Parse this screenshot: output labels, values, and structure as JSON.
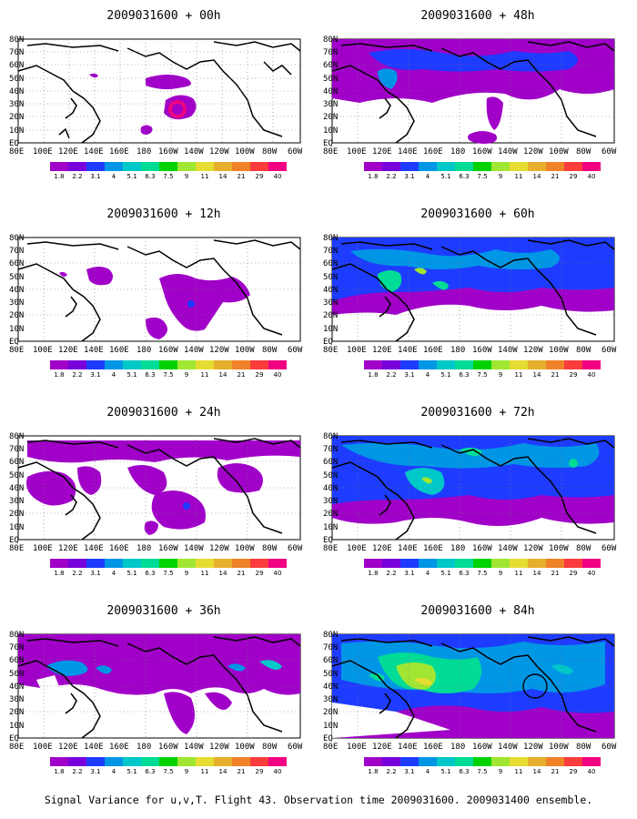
{
  "caption": "Signal Variance for u,v,T. Flight 43. Observation time 2009031600. 2009031400 ensemble.",
  "map": {
    "lat_labels": [
      "80N",
      "70N",
      "60N",
      "50N",
      "40N",
      "30N",
      "20N",
      "10N",
      "EQ"
    ],
    "lon_labels": [
      "80E",
      "100E",
      "120E",
      "140E",
      "160E",
      "180",
      "160W",
      "140W",
      "120W",
      "100W",
      "80W",
      "60W"
    ],
    "lon_range_deg_east": [
      80,
      300
    ],
    "lat_range_deg": [
      0,
      80
    ]
  },
  "colorbar": {
    "levels": [
      "1.8",
      "2.2",
      "3.1",
      "4",
      "5.1",
      "6.3",
      "7.5",
      "9",
      "11",
      "14",
      "21",
      "29",
      "40"
    ],
    "colors": [
      "#a000c8",
      "#7800dc",
      "#1e3cff",
      "#0096e6",
      "#00c8c8",
      "#00dc96",
      "#00d200",
      "#a0e632",
      "#e6dc32",
      "#e6af2d",
      "#f08228",
      "#fa3c3c",
      "#f00082"
    ]
  },
  "panels": [
    {
      "title": "2009031600 + 00h",
      "column": "left"
    },
    {
      "title": "2009031600 + 12h",
      "column": "left"
    },
    {
      "title": "2009031600 + 24h",
      "column": "left"
    },
    {
      "title": "2009031600 + 36h",
      "column": "left"
    },
    {
      "title": "2009031600 + 48h",
      "column": "right"
    },
    {
      "title": "2009031600 + 60h",
      "column": "right"
    },
    {
      "title": "2009031600 + 72h",
      "column": "right"
    },
    {
      "title": "2009031600 + 84h",
      "column": "right"
    }
  ]
}
